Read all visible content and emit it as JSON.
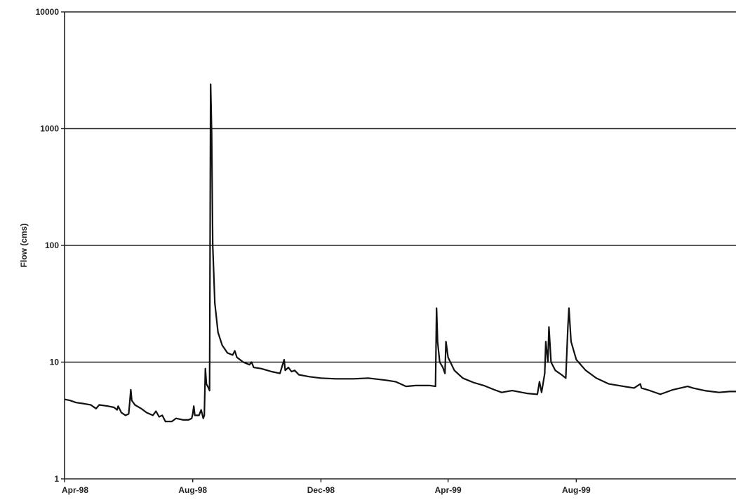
{
  "chart_data": {
    "type": "line",
    "title": "",
    "xlabel": "",
    "ylabel": "Flow (cms)",
    "y_scale": "log",
    "ylim": [
      1,
      10000
    ],
    "y_ticks": [
      {
        "value": 1,
        "label": "1"
      },
      {
        "value": 10,
        "label": "10"
      },
      {
        "value": 100,
        "label": "100"
      },
      {
        "value": 1000,
        "label": "1000"
      },
      {
        "value": 10000,
        "label": "10000"
      }
    ],
    "xlim": [
      "1998-04-01",
      "1999-12-31"
    ],
    "x_ticks": [
      {
        "date": "1998-04-01",
        "label": "Apr-98"
      },
      {
        "date": "1998-08-01",
        "label": "Aug-98"
      },
      {
        "date": "1998-12-01",
        "label": "Dec-98"
      },
      {
        "date": "1999-04-01",
        "label": "Apr-99"
      },
      {
        "date": "1999-08-01",
        "label": "Aug-99"
      }
    ],
    "grid": "horizontal major gridlines",
    "legend": "none",
    "series": [
      {
        "color": "#111111",
        "points": [
          [
            "1998-04-01",
            4.8
          ],
          [
            "1998-04-06",
            4.7
          ],
          [
            "1998-04-12",
            4.5
          ],
          [
            "1998-04-20",
            4.4
          ],
          [
            "1998-04-26",
            4.3
          ],
          [
            "1998-05-01",
            4.0
          ],
          [
            "1998-05-04",
            4.3
          ],
          [
            "1998-05-12",
            4.2
          ],
          [
            "1998-05-18",
            4.1
          ],
          [
            "1998-05-21",
            3.9
          ],
          [
            "1998-05-22",
            4.2
          ],
          [
            "1998-05-25",
            3.7
          ],
          [
            "1998-05-29",
            3.5
          ],
          [
            "1998-06-01",
            3.6
          ],
          [
            "1998-06-02",
            4.5
          ],
          [
            "1998-06-03",
            5.8
          ],
          [
            "1998-06-04",
            4.7
          ],
          [
            "1998-06-07",
            4.3
          ],
          [
            "1998-06-13",
            4.0
          ],
          [
            "1998-06-18",
            3.7
          ],
          [
            "1998-06-24",
            3.5
          ],
          [
            "1998-06-27",
            3.8
          ],
          [
            "1998-06-30",
            3.4
          ],
          [
            "1998-07-03",
            3.5
          ],
          [
            "1998-07-06",
            3.1
          ],
          [
            "1998-07-12",
            3.1
          ],
          [
            "1998-07-16",
            3.3
          ],
          [
            "1998-07-23",
            3.2
          ],
          [
            "1998-07-28",
            3.2
          ],
          [
            "1998-07-31",
            3.3
          ],
          [
            "1998-08-01",
            3.6
          ],
          [
            "1998-08-02",
            4.2
          ],
          [
            "1998-08-03",
            3.5
          ],
          [
            "1998-08-07",
            3.5
          ],
          [
            "1998-08-09",
            3.9
          ],
          [
            "1998-08-11",
            3.3
          ],
          [
            "1998-08-12",
            3.5
          ],
          [
            "1998-08-13",
            8.8
          ],
          [
            "1998-08-14",
            6.5
          ],
          [
            "1998-08-16",
            6.0
          ],
          [
            "1998-08-17",
            5.7
          ],
          [
            "1998-08-18",
            2400
          ],
          [
            "1998-08-19",
            900
          ],
          [
            "1998-08-20",
            100
          ],
          [
            "1998-08-22",
            32
          ],
          [
            "1998-08-25",
            18
          ],
          [
            "1998-08-29",
            14
          ],
          [
            "1998-09-03",
            12
          ],
          [
            "1998-09-08",
            11.5
          ],
          [
            "1998-09-10",
            12.5
          ],
          [
            "1998-09-12",
            11
          ],
          [
            "1998-09-18",
            10
          ],
          [
            "1998-09-24",
            9.5
          ],
          [
            "1998-09-26",
            10
          ],
          [
            "1998-09-28",
            9
          ],
          [
            "1998-10-05",
            8.8
          ],
          [
            "1998-10-15",
            8.3
          ],
          [
            "1998-10-23",
            8
          ],
          [
            "1998-10-27",
            10.5
          ],
          [
            "1998-10-28",
            8.5
          ],
          [
            "1998-10-31",
            9
          ],
          [
            "1998-11-03",
            8.3
          ],
          [
            "1998-11-06",
            8.5
          ],
          [
            "1998-11-10",
            7.8
          ],
          [
            "1998-11-20",
            7.5
          ],
          [
            "1998-12-01",
            7.3
          ],
          [
            "1998-12-15",
            7.2
          ],
          [
            "1999-01-01",
            7.2
          ],
          [
            "1999-01-15",
            7.3
          ],
          [
            "1999-02-01",
            7.0
          ],
          [
            "1999-02-10",
            6.8
          ],
          [
            "1999-02-20",
            6.2
          ],
          [
            "1999-03-01",
            6.3
          ],
          [
            "1999-03-15",
            6.3
          ],
          [
            "1999-03-20",
            6.2
          ],
          [
            "1999-03-21",
            29
          ],
          [
            "1999-03-22",
            15
          ],
          [
            "1999-03-24",
            10
          ],
          [
            "1999-03-27",
            9
          ],
          [
            "1999-03-29",
            8
          ],
          [
            "1999-03-30",
            15
          ],
          [
            "1999-04-01",
            11
          ],
          [
            "1999-04-07",
            8.5
          ],
          [
            "1999-04-15",
            7.3
          ],
          [
            "1999-04-25",
            6.7
          ],
          [
            "1999-05-05",
            6.3
          ],
          [
            "1999-05-15",
            5.8
          ],
          [
            "1999-05-22",
            5.5
          ],
          [
            "1999-06-01",
            5.7
          ],
          [
            "1999-06-15",
            5.4
          ],
          [
            "1999-06-25",
            5.3
          ],
          [
            "1999-06-27",
            6.8
          ],
          [
            "1999-06-29",
            5.5
          ],
          [
            "1999-07-02",
            8
          ],
          [
            "1999-07-03",
            15
          ],
          [
            "1999-07-05",
            10
          ],
          [
            "1999-07-06",
            20
          ],
          [
            "1999-07-08",
            10
          ],
          [
            "1999-07-12",
            8.5
          ],
          [
            "1999-07-18",
            7.8
          ],
          [
            "1999-07-22",
            7.3
          ],
          [
            "1999-07-24",
            20
          ],
          [
            "1999-07-25",
            29
          ],
          [
            "1999-07-27",
            15
          ],
          [
            "1999-08-01",
            10.5
          ],
          [
            "1999-08-10",
            8.5
          ],
          [
            "1999-08-20",
            7.3
          ],
          [
            "1999-09-01",
            6.5
          ],
          [
            "1999-09-15",
            6.2
          ],
          [
            "1999-09-25",
            6.0
          ],
          [
            "1999-10-01",
            6.5
          ],
          [
            "1999-10-02",
            6.0
          ],
          [
            "1999-10-10",
            5.7
          ],
          [
            "1999-10-20",
            5.3
          ],
          [
            "1999-11-01",
            5.8
          ],
          [
            "1999-11-15",
            6.2
          ],
          [
            "1999-11-20",
            6.0
          ],
          [
            "1999-12-01",
            5.7
          ],
          [
            "1999-12-15",
            5.5
          ],
          [
            "1999-12-25",
            5.6
          ],
          [
            "1999-12-31",
            5.6
          ]
        ]
      }
    ]
  }
}
